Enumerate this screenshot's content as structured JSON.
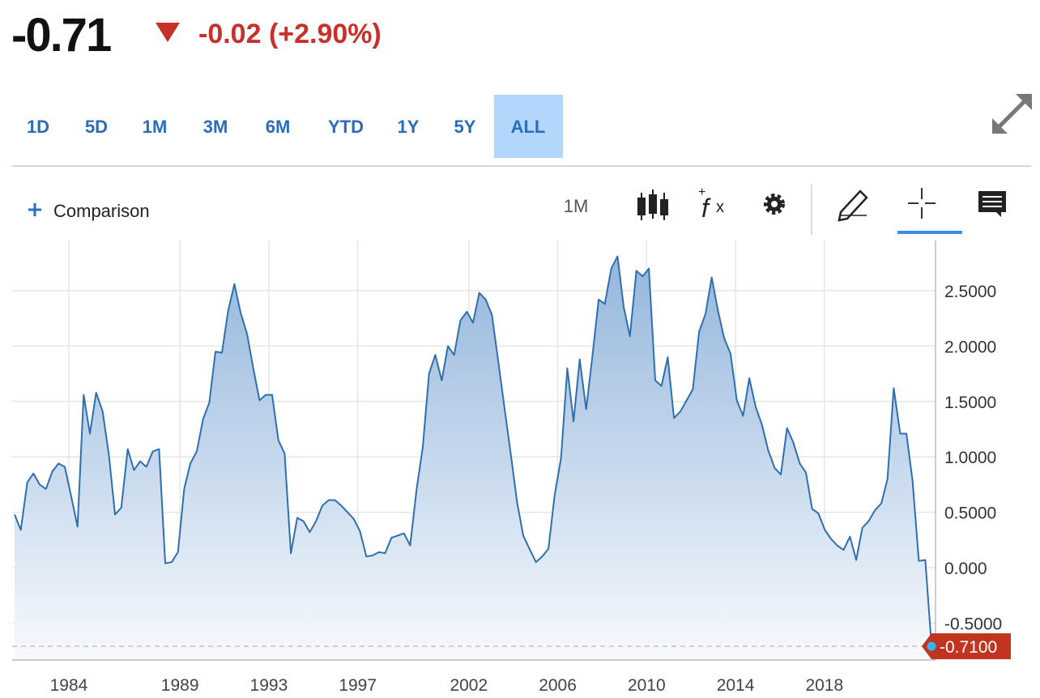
{
  "header": {
    "price": "-0.71",
    "change": "-0.02 (+2.90%)"
  },
  "ranges": [
    "1D",
    "5D",
    "1M",
    "3M",
    "6M",
    "YTD",
    "1Y",
    "5Y",
    "ALL"
  ],
  "active_range": "ALL",
  "toolbar": {
    "comparison": "Comparison",
    "interval": "1M"
  },
  "chart_data": {
    "type": "area",
    "xlim": [
      1981.45,
      2023.0
    ],
    "xticks": [
      1984,
      1989,
      1993,
      1997,
      2002,
      2006,
      2010,
      2014,
      2018
    ],
    "ylim": [
      -0.833,
      2.953
    ],
    "yticks": [
      {
        "value": -0.5,
        "label": "-0.5000"
      },
      {
        "value": 0,
        "label": "0.000"
      },
      {
        "value": 0.5,
        "label": "0.5000"
      },
      {
        "value": 1,
        "label": "1.0000"
      },
      {
        "value": 1.5,
        "label": "1.5000"
      },
      {
        "value": 2,
        "label": "2.0000"
      },
      {
        "value": 2.5,
        "label": "2.5000"
      }
    ],
    "grid": true,
    "series": [
      {
        "color": "#2f6fae",
        "x": [
          1981.56,
          1981.84,
          1982.13,
          1982.41,
          1982.69,
          1982.97,
          1983.26,
          1983.54,
          1983.82,
          1984.1,
          1984.39,
          1984.67,
          1984.95,
          1985.23,
          1985.52,
          1985.8,
          1986.08,
          1986.36,
          1986.65,
          1986.93,
          1987.21,
          1987.49,
          1987.78,
          1988.06,
          1988.34,
          1988.63,
          1988.91,
          1989.19,
          1989.47,
          1989.76,
          1990.04,
          1990.32,
          1990.6,
          1990.89,
          1991.17,
          1991.45,
          1991.73,
          1992.02,
          1992.3,
          1992.58,
          1992.86,
          1993.15,
          1993.43,
          1993.71,
          1993.99,
          1994.28,
          1994.56,
          1994.84,
          1995.12,
          1995.41,
          1995.69,
          1995.97,
          1996.26,
          1996.54,
          1996.82,
          1997.1,
          1997.39,
          1997.67,
          1997.95,
          1998.23,
          1998.52,
          1998.8,
          1999.08,
          1999.36,
          1999.65,
          1999.93,
          2000.21,
          2000.49,
          2000.78,
          2001.06,
          2001.34,
          2001.62,
          2001.91,
          2002.19,
          2002.47,
          2002.76,
          2003.04,
          2003.32,
          2003.6,
          2003.89,
          2004.17,
          2004.45,
          2004.73,
          2005.02,
          2005.3,
          2005.58,
          2005.86,
          2006.15,
          2006.43,
          2006.71,
          2006.99,
          2007.28,
          2007.56,
          2007.84,
          2008.12,
          2008.41,
          2008.69,
          2008.97,
          2009.25,
          2009.54,
          2009.82,
          2010.1,
          2010.39,
          2010.67,
          2010.95,
          2011.23,
          2011.52,
          2011.8,
          2012.08,
          2012.36,
          2012.65,
          2012.93,
          2013.21,
          2013.49,
          2013.78,
          2014.06,
          2014.34,
          2014.62,
          2014.91,
          2015.19,
          2015.47,
          2015.76,
          2016.04,
          2016.32,
          2016.6,
          2016.89,
          2017.17,
          2017.45,
          2017.73,
          2018.02,
          2018.3,
          2018.58,
          2018.86,
          2019.15,
          2019.43,
          2019.71,
          2019.99,
          2020.28,
          2020.56,
          2020.84,
          2021.12,
          2021.41,
          2021.69,
          2021.97,
          2022.25,
          2022.54,
          2022.82
        ],
        "values": [
          0.48,
          0.34,
          0.77,
          0.85,
          0.75,
          0.71,
          0.87,
          0.94,
          0.91,
          0.65,
          0.37,
          1.56,
          1.21,
          1.58,
          1.41,
          1.02,
          0.48,
          0.54,
          1.07,
          0.88,
          0.96,
          0.91,
          1.05,
          1.07,
          0.04,
          0.05,
          0.14,
          0.71,
          0.94,
          1.05,
          1.34,
          1.49,
          1.95,
          1.94,
          2.32,
          2.56,
          2.3,
          2.11,
          1.8,
          1.51,
          1.56,
          1.56,
          1.15,
          1.03,
          0.13,
          0.45,
          0.42,
          0.32,
          0.42,
          0.56,
          0.61,
          0.61,
          0.56,
          0.5,
          0.44,
          0.33,
          0.1,
          0.11,
          0.14,
          0.13,
          0.27,
          0.29,
          0.31,
          0.2,
          0.71,
          1.09,
          1.75,
          1.92,
          1.69,
          2.0,
          1.92,
          2.23,
          2.31,
          2.21,
          2.48,
          2.42,
          2.28,
          1.87,
          1.45,
          1.02,
          0.59,
          0.29,
          0.17,
          0.05,
          0.1,
          0.17,
          0.65,
          0.99,
          1.8,
          1.32,
          1.88,
          1.43,
          1.91,
          2.42,
          2.38,
          2.7,
          2.81,
          2.35,
          2.09,
          2.68,
          2.63,
          2.7,
          1.69,
          1.64,
          1.9,
          1.35,
          1.41,
          1.51,
          1.61,
          2.13,
          2.29,
          2.62,
          2.32,
          2.07,
          1.93,
          1.51,
          1.37,
          1.71,
          1.45,
          1.29,
          1.06,
          0.9,
          0.84,
          1.26,
          1.13,
          0.94,
          0.86,
          0.53,
          0.49,
          0.34,
          0.26,
          0.2,
          0.16,
          0.28,
          0.07,
          0.36,
          0.42,
          0.52,
          0.58,
          0.8,
          1.62,
          1.21,
          1.21,
          0.78,
          0.06,
          0.07,
          -0.71
        ]
      }
    ],
    "last_price": {
      "value": -0.71,
      "label": "-0.7100"
    }
  }
}
